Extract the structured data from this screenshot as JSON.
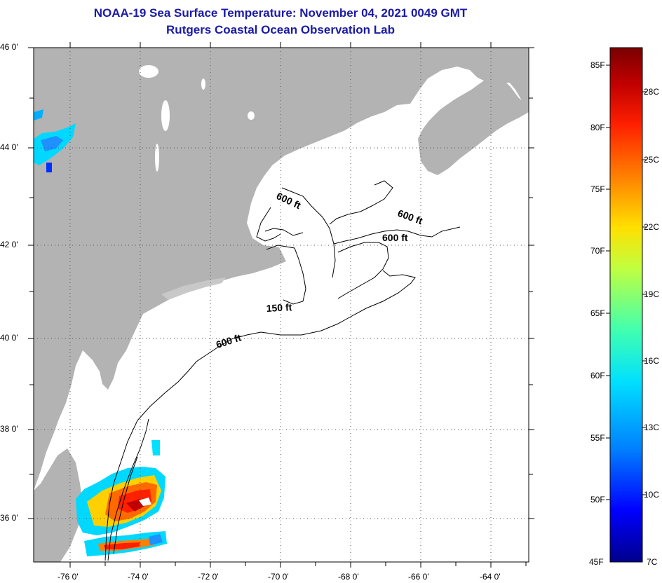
{
  "title": "NOAA-19 Sea Surface Temperature:  November 04, 2021 0049 GMT",
  "subtitle": "Rutgers Coastal Ocean Observation Lab",
  "map": {
    "lat_labels": [
      "46 0'",
      "44 0'",
      "42 0'",
      "40 0'",
      "38 0'",
      "36 0'"
    ],
    "lon_labels": [
      "-76 0'",
      "-74 0'",
      "-72 0'",
      "-70 0'",
      "-68 0'",
      "-66 0'",
      "-64 0'"
    ],
    "contour_labels": [
      "600 ft",
      "600 ft",
      "600 ft",
      "150 ft",
      "600 ft"
    ],
    "colors": {
      "land": "#b3b3b3",
      "ocean": "#ffffff",
      "contour": "#000000"
    }
  },
  "colorbar": {
    "fahrenheit": [
      "85F",
      "80F",
      "75F",
      "70F",
      "65F",
      "60F",
      "55F",
      "50F",
      "45F"
    ],
    "celsius": [
      "28C",
      "25C",
      "22C",
      "19C",
      "16C",
      "13C",
      "10C",
      "7C"
    ],
    "colors": [
      "#00008c",
      "#0000ff",
      "#0080ff",
      "#00e0ff",
      "#40ffb0",
      "#c0ff40",
      "#ffe000",
      "#ff8000",
      "#ff2000",
      "#c00000",
      "#7a0000"
    ]
  }
}
